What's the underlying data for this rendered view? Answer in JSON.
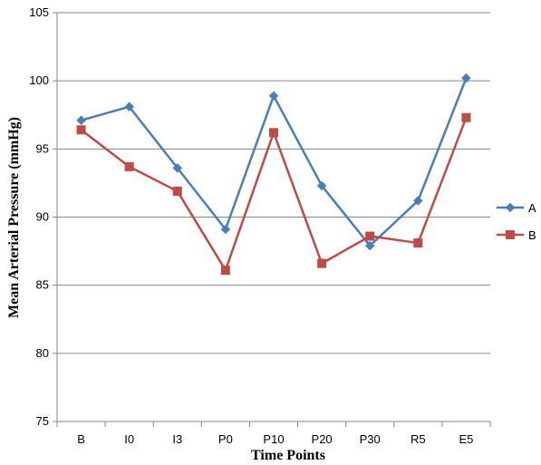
{
  "chart_data": {
    "type": "line",
    "title": "",
    "xlabel": "Time Points",
    "ylabel": "Mean Arterial Pressure (mmHg)",
    "ylim": [
      75,
      105
    ],
    "yticks": [
      75,
      80,
      85,
      90,
      95,
      100,
      105
    ],
    "grid": true,
    "legend_position": "right",
    "categories": [
      "B",
      "I0",
      "I3",
      "P0",
      "P10",
      "P20",
      "P30",
      "R5",
      "E5"
    ],
    "series": [
      {
        "name": "A",
        "color": "#4a7ebb",
        "marker": "diamond",
        "values": [
          97.1,
          98.1,
          93.6,
          89.1,
          98.9,
          92.3,
          87.9,
          91.2,
          100.2
        ]
      },
      {
        "name": "B",
        "color": "#be4b48",
        "marker": "square",
        "values": [
          96.4,
          93.7,
          91.9,
          86.1,
          96.2,
          86.6,
          88.6,
          88.1,
          97.3
        ]
      }
    ]
  }
}
